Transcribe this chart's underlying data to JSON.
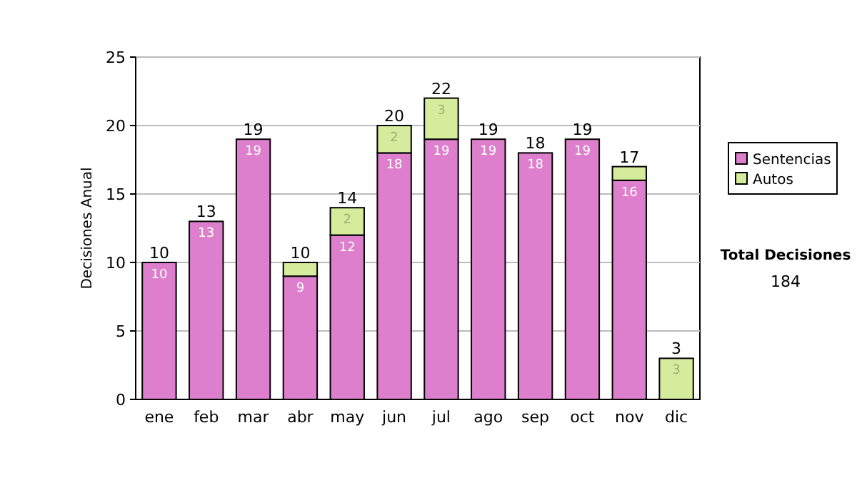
{
  "chart_data": {
    "type": "bar",
    "stacked": true,
    "ylabel": "Decisiones Anual",
    "categories": [
      "ene",
      "feb",
      "mar",
      "abr",
      "may",
      "jun",
      "jul",
      "ago",
      "sep",
      "oct",
      "nov",
      "dic"
    ],
    "series": [
      {
        "name": "Sentencias",
        "color": "#dd7fcc",
        "values": [
          10,
          13,
          19,
          9,
          12,
          18,
          19,
          19,
          18,
          19,
          16,
          0
        ],
        "value_labels": [
          "10",
          "13",
          "19",
          "9",
          "12",
          "18",
          "19",
          "19",
          "18",
          "19",
          "16",
          null
        ]
      },
      {
        "name": "Autos",
        "color": "#d4ec9c",
        "values": [
          0,
          0,
          0,
          1,
          2,
          2,
          3,
          0,
          0,
          0,
          1,
          3
        ],
        "value_labels": [
          null,
          null,
          null,
          null,
          "2",
          "2",
          "3",
          null,
          null,
          null,
          null,
          "3"
        ]
      }
    ],
    "totals": [
      "10",
      "13",
      "19",
      "10",
      "14",
      "20",
      "22",
      "19",
      "18",
      "19",
      "17",
      "3"
    ],
    "ylim": [
      0,
      25
    ],
    "yticks": [
      0,
      5,
      10,
      15,
      20,
      25
    ],
    "grid": "y",
    "legend": "right",
    "annotations": [
      "Total Decisiones",
      "184"
    ]
  }
}
